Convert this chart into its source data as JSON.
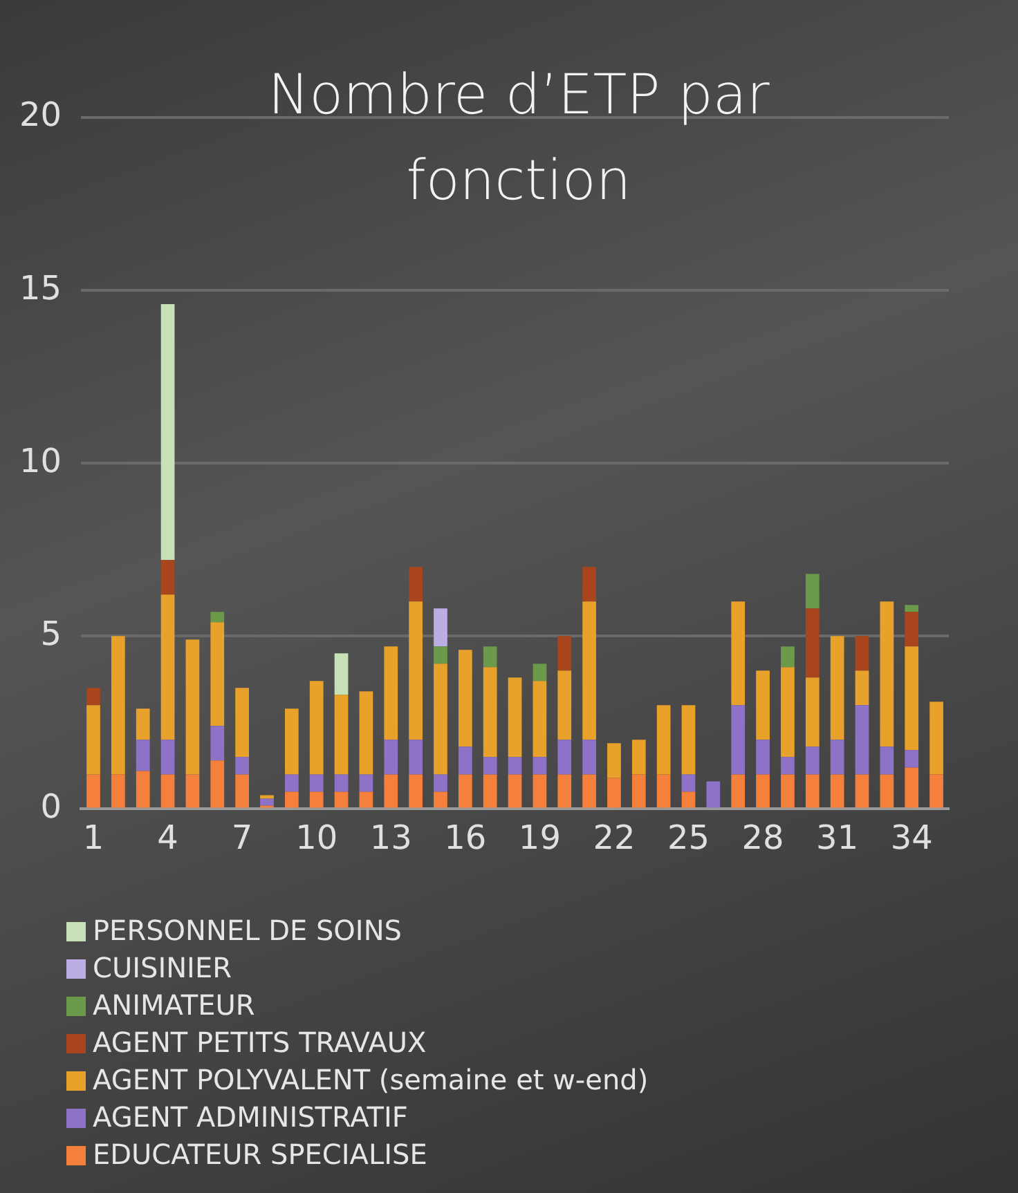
{
  "chart_data": {
    "type": "bar",
    "stacked": true,
    "title": "Nombre d’ETP par fonction",
    "categories": [
      "1",
      null,
      null,
      "4",
      null,
      null,
      "7",
      null,
      null,
      "10",
      null,
      null,
      "13",
      null,
      null,
      "16",
      null,
      null,
      "19",
      null,
      null,
      "22",
      null,
      null,
      "25",
      null,
      null,
      "28",
      null,
      null,
      "31",
      null,
      null,
      "34",
      null
    ],
    "ylim": [
      0,
      20
    ],
    "yticks": [
      0,
      5,
      10,
      15,
      20
    ],
    "grid": "y",
    "legend": "bottom",
    "series": [
      {
        "name": "EDUCATEUR SPECIALISE",
        "color": "#f4803c",
        "values": [
          1,
          1,
          1.1,
          1,
          1,
          1.4,
          1,
          0.1,
          0.5,
          0.5,
          0.5,
          0.5,
          1,
          1,
          0.5,
          1,
          1,
          1,
          1,
          1,
          1,
          0.9,
          1,
          1,
          0.5,
          0,
          1,
          1,
          1,
          1,
          1,
          1,
          1,
          1.2,
          1
        ]
      },
      {
        "name": "AGENT ADMINISTRATIF",
        "color": "#8e72c8",
        "values": [
          0,
          0,
          0.9,
          1,
          0,
          1,
          0.5,
          0.2,
          0.5,
          0.5,
          0.5,
          0.5,
          1,
          1,
          0.5,
          0.8,
          0.5,
          0.5,
          0.5,
          1,
          1,
          0,
          0,
          0,
          0.5,
          0.8,
          2,
          1,
          0.5,
          0.8,
          1,
          2,
          0.8,
          0.5,
          0
        ]
      },
      {
        "name": "AGENT POLYVALENT (semaine et w-end)",
        "color": "#e8a22c",
        "values": [
          2,
          4,
          0.9,
          4.2,
          3.9,
          3,
          2,
          0.1,
          1.9,
          2.7,
          2.3,
          2.4,
          2.7,
          4,
          3.2,
          2.8,
          2.6,
          2.3,
          2.2,
          2,
          4,
          1,
          1,
          2,
          2,
          0,
          3,
          2,
          2.6,
          2,
          3,
          1,
          4.2,
          3,
          2.1
        ]
      },
      {
        "name": "AGENT PETITS TRAVAUX",
        "color": "#a8451c",
        "values": [
          0.5,
          0,
          0,
          1,
          0,
          0,
          0,
          0,
          0,
          0,
          0,
          0,
          0,
          1,
          0,
          0,
          0,
          0,
          0,
          1,
          1,
          0,
          0,
          0,
          0,
          0,
          0,
          0,
          0,
          2,
          0,
          1,
          0,
          1,
          0
        ]
      },
      {
        "name": "ANIMATEUR",
        "color": "#6a9a4a",
        "values": [
          0,
          0,
          0,
          0,
          0,
          0.3,
          0,
          0,
          0,
          0,
          0,
          0,
          0,
          0,
          0.5,
          0,
          0.6,
          0,
          0.5,
          0,
          0,
          0,
          0,
          0,
          0,
          0,
          0,
          0,
          0.6,
          1,
          0,
          0,
          0,
          0.2,
          0
        ]
      },
      {
        "name": "CUISINIER",
        "color": "#bcaee4",
        "values": [
          0,
          0,
          0,
          0,
          0,
          0,
          0,
          0,
          0,
          0,
          0,
          0,
          0,
          0,
          1.1,
          0,
          0,
          0,
          0,
          0,
          0,
          0,
          0,
          0,
          0,
          0,
          0,
          0,
          0,
          0,
          0,
          0,
          0,
          0,
          0
        ]
      },
      {
        "name": "PERSONNEL DE SOINS",
        "color": "#c8e0b8",
        "values": [
          0,
          0,
          0,
          7.4,
          0,
          0,
          0,
          0,
          0,
          0,
          1.2,
          0,
          0,
          0,
          0,
          0,
          0,
          0,
          0,
          0,
          0,
          0,
          0,
          0,
          0,
          0,
          0,
          0,
          0,
          0,
          0,
          0,
          0,
          0,
          0
        ]
      }
    ]
  }
}
